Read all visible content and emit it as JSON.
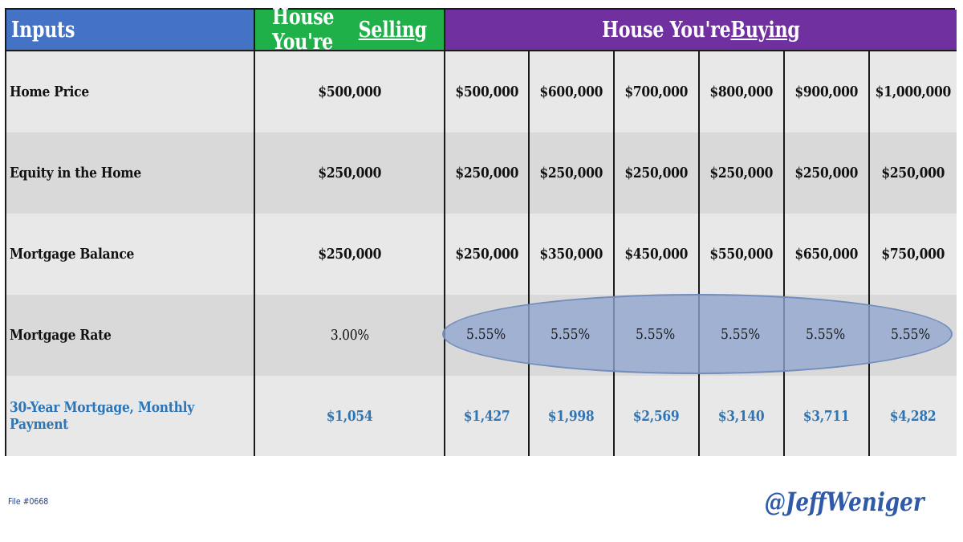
{
  "header": {
    "inputs": "Inputs",
    "selling_prefix": "House You're ",
    "selling_word": "Selling",
    "buying_prefix": "House You're ",
    "buying_word": "Buying"
  },
  "rows": [
    {
      "label": "Home Price",
      "selling": "$500,000",
      "buying": [
        "$500,000",
        "$600,000",
        "$700,000",
        "$800,000",
        "$900,000",
        "$1,000,000"
      ]
    },
    {
      "label": "Equity in the Home",
      "selling": "$250,000",
      "buying": [
        "$250,000",
        "$250,000",
        "$250,000",
        "$250,000",
        "$250,000",
        "$250,000"
      ]
    },
    {
      "label": "Mortgage Balance",
      "selling": "$250,000",
      "buying": [
        "$250,000",
        "$350,000",
        "$450,000",
        "$550,000",
        "$650,000",
        "$750,000"
      ]
    },
    {
      "label": "Mortgage Rate",
      "selling": "3.00%",
      "buying": [
        "5.55%",
        "5.55%",
        "5.55%",
        "5.55%",
        "5.55%",
        "5.55%"
      ]
    },
    {
      "label": "30-Year Mortgage, Monthly Payment",
      "selling": "$1,054",
      "buying": [
        "$1,427",
        "$1,998",
        "$2,569",
        "$3,140",
        "$3,711",
        "$4,282"
      ]
    }
  ],
  "footer": {
    "file_label": "File #0668",
    "handle": "@JeffWeniger"
  },
  "colors": {
    "inputs_header": "#4472c4",
    "selling_header": "#1fb04a",
    "buying_header": "#7030a0",
    "payment_text": "#2e75b6",
    "highlight_ellipse": "#8fa5ce"
  }
}
